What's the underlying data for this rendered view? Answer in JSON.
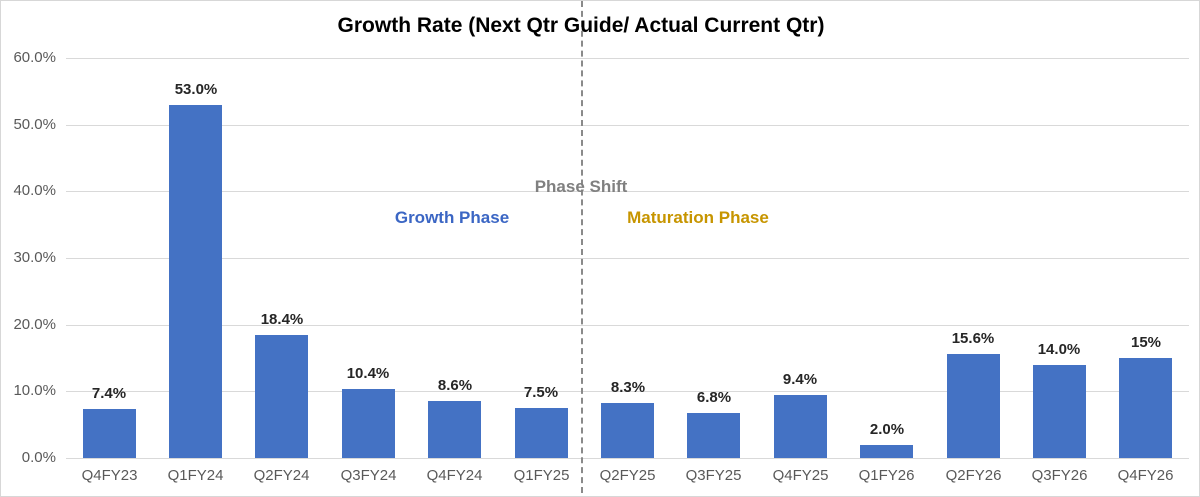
{
  "chart_data": {
    "type": "bar",
    "title": "Growth Rate (Next Qtr Guide/ Actual Current Qtr)",
    "categories": [
      "Q4FY23",
      "Q1FY24",
      "Q2FY24",
      "Q3FY24",
      "Q4FY24",
      "Q1FY25",
      "Q2FY25",
      "Q3FY25",
      "Q4FY25",
      "Q1FY26",
      "Q2FY26",
      "Q3FY26",
      "Q4FY26"
    ],
    "values": [
      7.4,
      53.0,
      18.4,
      10.4,
      8.6,
      7.5,
      8.3,
      6.8,
      9.4,
      2.0,
      15.6,
      14.0,
      15
    ],
    "labels": [
      "7.4%",
      "53.0%",
      "18.4%",
      "10.4%",
      "8.6%",
      "7.5%",
      "8.3%",
      "6.8%",
      "9.4%",
      "2.0%",
      "15.6%",
      "14.0%",
      "15%"
    ],
    "xlabel": "",
    "ylabel": "",
    "ylim": [
      0,
      60
    ],
    "ytick_labels_top_to_bottom": [
      "60.0%",
      "50.0%",
      "40.0%",
      "30.0%",
      "20.0%",
      "10.0%",
      "0.0%"
    ],
    "grid": true,
    "legend": "none",
    "divider_after_index": 5,
    "annotations": {
      "phase_shift": "Phase Shift",
      "growth_phase": "Growth Phase",
      "maturation_phase": "Maturation Phase"
    },
    "colors": {
      "bar": "#4472c4",
      "gridline": "#d9d9d9",
      "axis_label": "#595959",
      "data_label": "#262626",
      "divider_line": "#8a8a8a",
      "phase_shift_text": "#808080",
      "growth_phase_text": "#3b66c4",
      "maturation_phase_text": "#c79500"
    }
  }
}
